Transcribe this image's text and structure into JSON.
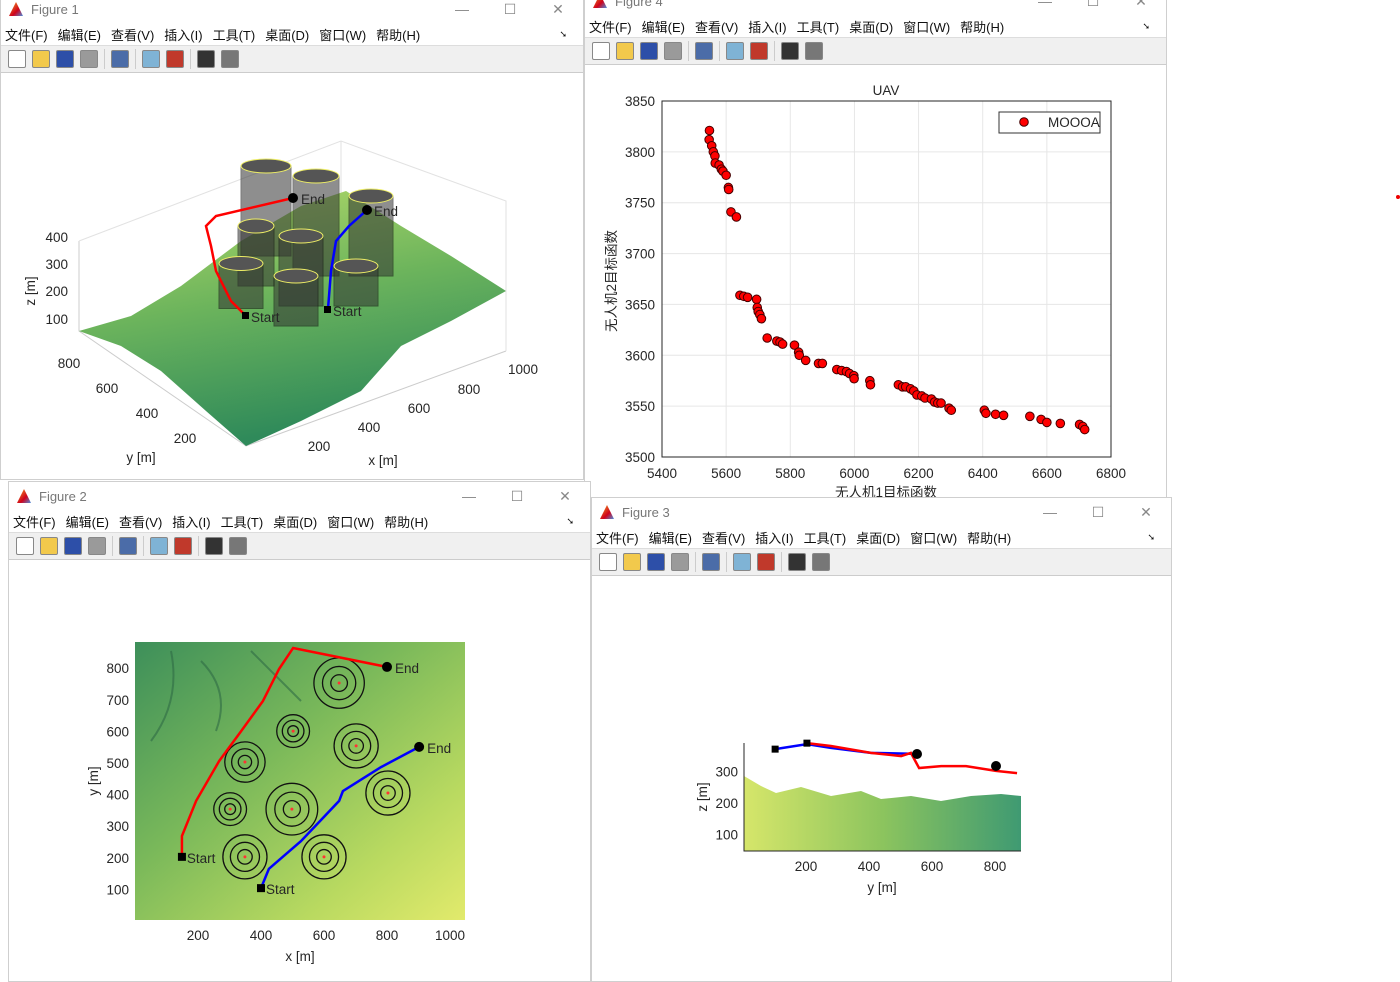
{
  "windows": [
    {
      "id": "figure1",
      "title": "Figure 1"
    },
    {
      "id": "figure4",
      "title": "Figure 4"
    },
    {
      "id": "figure2",
      "title": "Figure 2"
    },
    {
      "id": "figure3",
      "title": "Figure 3"
    }
  ],
  "menu": [
    "文件(F)",
    "编辑(E)",
    "查看(V)",
    "插入(I)",
    "工具(T)",
    "桌面(D)",
    "窗口(W)",
    "帮助(H)"
  ],
  "toolbar_icons": [
    {
      "name": "new-figure",
      "color": "#ffffff"
    },
    {
      "name": "open-folder",
      "color": "#f2c94c"
    },
    {
      "name": "save",
      "color": "#2d4fa8"
    },
    {
      "name": "print",
      "color": "#9a9a9a"
    },
    {
      "name": "link-plot",
      "color": "#4b6ca8"
    },
    {
      "name": "colorbar",
      "color": "#7fb3d5"
    },
    {
      "name": "legend",
      "color": "#c0392b"
    },
    {
      "name": "pointer",
      "color": "#333333"
    },
    {
      "name": "property-inspector",
      "color": "#777777"
    }
  ],
  "window_controls": {
    "minimize": "—",
    "maximize": "☐",
    "close": "✕"
  },
  "figure1": {
    "zlabel": "z [m]",
    "ylabel": "y [m]",
    "xlabel": "x [m]",
    "zticks": [
      "100",
      "200",
      "300",
      "400"
    ],
    "yticks": [
      "200",
      "400",
      "600",
      "800"
    ],
    "xticks": [
      "200",
      "400",
      "600",
      "800",
      "1000"
    ],
    "labels": {
      "start1": "Start",
      "start2": "Start",
      "end1": "End",
      "end2": "End"
    }
  },
  "chart_data": [
    {
      "figure": "Figure 4",
      "type": "scatter",
      "title": "UAV",
      "xlabel": "无人机1目标函数",
      "ylabel": "无人机2目标函数",
      "xlim": [
        5400,
        6800
      ],
      "ylim": [
        3500,
        3850
      ],
      "xticks": [
        5400,
        5600,
        5800,
        6000,
        6200,
        6400,
        6600,
        6800
      ],
      "yticks": [
        3500,
        3550,
        3600,
        3650,
        3700,
        3750,
        3800,
        3850
      ],
      "grid": true,
      "legend_position": "top-right",
      "marker_color": "#ff0000",
      "series": [
        {
          "name": "MOOOA",
          "points": [
            [
              5548,
              3821
            ],
            [
              5547,
              3812
            ],
            [
              5555,
              3806
            ],
            [
              5560,
              3800
            ],
            [
              5565,
              3796
            ],
            [
              5566,
              3789
            ],
            [
              5578,
              3787
            ],
            [
              5585,
              3783
            ],
            [
              5590,
              3781
            ],
            [
              5600,
              3777
            ],
            [
              5607,
              3765
            ],
            [
              5608,
              3763
            ],
            [
              5615,
              3741
            ],
            [
              5632,
              3736
            ],
            [
              5643,
              3659
            ],
            [
              5655,
              3658
            ],
            [
              5667,
              3657
            ],
            [
              5695,
              3655
            ],
            [
              5697,
              3647
            ],
            [
              5700,
              3643
            ],
            [
              5705,
              3640
            ],
            [
              5710,
              3636
            ],
            [
              5728,
              3617
            ],
            [
              5758,
              3614
            ],
            [
              5768,
              3613
            ],
            [
              5776,
              3611
            ],
            [
              5813,
              3610
            ],
            [
              5826,
              3603
            ],
            [
              5828,
              3600
            ],
            [
              5848,
              3595
            ],
            [
              5888,
              3592
            ],
            [
              5900,
              3592
            ],
            [
              5945,
              3586
            ],
            [
              5960,
              3585
            ],
            [
              5975,
              3584
            ],
            [
              5985,
              3582
            ],
            [
              5998,
              3580
            ],
            [
              5999,
              3577
            ],
            [
              6048,
              3575
            ],
            [
              6050,
              3571
            ],
            [
              6137,
              3571
            ],
            [
              6150,
              3569
            ],
            [
              6160,
              3569
            ],
            [
              6175,
              3567
            ],
            [
              6185,
              3565
            ],
            [
              6195,
              3561
            ],
            [
              6210,
              3560
            ],
            [
              6220,
              3558
            ],
            [
              6240,
              3557
            ],
            [
              6250,
              3554
            ],
            [
              6260,
              3553
            ],
            [
              6270,
              3553
            ],
            [
              6295,
              3548
            ],
            [
              6302,
              3546
            ],
            [
              6405,
              3546
            ],
            [
              6410,
              3543
            ],
            [
              6440,
              3542
            ],
            [
              6465,
              3541
            ],
            [
              6547,
              3540
            ],
            [
              6582,
              3537
            ],
            [
              6600,
              3534
            ],
            [
              6642,
              3533
            ],
            [
              6702,
              3532
            ],
            [
              6712,
              3530
            ],
            [
              6718,
              3527
            ]
          ]
        }
      ]
    },
    {
      "figure": "Figure 2",
      "type": "line",
      "xlabel": "x [m]",
      "ylabel": "y [m]",
      "xticks": [
        200,
        400,
        600,
        800,
        1000
      ],
      "yticks": [
        100,
        200,
        300,
        400,
        500,
        600,
        700,
        800
      ],
      "xlim": [
        0,
        1050
      ],
      "ylim": [
        0,
        880
      ],
      "series": [
        {
          "color": "#ff0000",
          "start_label": "Start",
          "end_label": "End",
          "points": [
            [
              149,
              203
            ],
            [
              149,
              269
            ],
            [
              194,
              380
            ],
            [
              267,
              506
            ],
            [
              337,
              601
            ],
            [
              406,
              696
            ],
            [
              457,
              797
            ],
            [
              502,
              864
            ],
            [
              800,
              804
            ]
          ]
        },
        {
          "color": "#0000ff",
          "start_label": "Start",
          "end_label": "End",
          "points": [
            [
              400,
              104
            ],
            [
              425,
              165
            ],
            [
              527,
              253
            ],
            [
              648,
              380
            ],
            [
              660,
              411
            ],
            [
              781,
              487
            ],
            [
              902,
              551
            ]
          ]
        }
      ],
      "obstacles": [
        [
          648,
          753,
          80
        ],
        [
          502,
          601,
          52
        ],
        [
          702,
          554,
          70
        ],
        [
          349,
          503,
          64
        ],
        [
          302,
          354,
          52
        ],
        [
          498,
          354,
          82
        ],
        [
          803,
          405,
          70
        ],
        [
          349,
          203,
          70
        ],
        [
          600,
          203,
          70
        ]
      ]
    },
    {
      "figure": "Figure 3",
      "type": "line",
      "xlabel": "y [m]",
      "ylabel": "z [m]",
      "xticks": [
        200,
        400,
        600,
        800
      ],
      "yticks": [
        100,
        200,
        300
      ],
      "series": [
        {
          "color": "#0000ff",
          "points": [
            [
              102,
              371
            ],
            [
              203,
              387
            ],
            [
              279,
              375
            ],
            [
              406,
              359
            ],
            [
              552,
              356
            ]
          ]
        },
        {
          "color": "#ff0000",
          "points": [
            [
              203,
              390
            ],
            [
              279,
              381
            ],
            [
              406,
              359
            ],
            [
              502,
              349
            ],
            [
              533,
              359
            ],
            [
              559,
              311
            ],
            [
              629,
              317
            ],
            [
              708,
              317
            ],
            [
              803,
              302
            ],
            [
              870,
              295
            ]
          ]
        }
      ]
    }
  ]
}
